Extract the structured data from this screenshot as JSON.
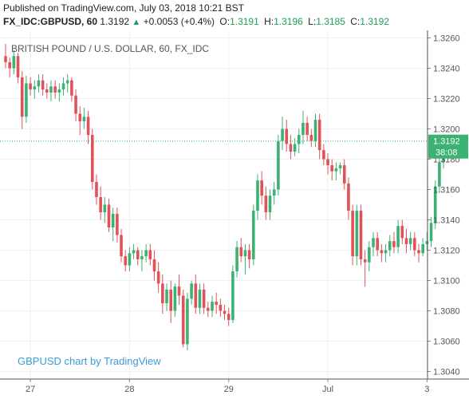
{
  "header": {
    "published": "Published on TradingView.com, July 03, 2018 10:21 BST",
    "symbol": "FX_IDC:GBPUSD, 60",
    "last": "1.3192",
    "change": "+0.0053 (+0.4%)",
    "open_label": "O:",
    "open": "1.3191",
    "high_label": "H:",
    "high": "1.3196",
    "low_label": "L:",
    "low": "1.3185",
    "close_label": "C:",
    "close": "1.3192"
  },
  "colors": {
    "up": "#3bb273",
    "down": "#e0525a",
    "price_line": "#3bb273",
    "axis_text": "#555555"
  },
  "chart_data": {
    "type": "candlestick",
    "title": "BRITISH POUND / U.S. DOLLAR, 60, FX_IDC",
    "watermark": "GBPUSD chart by TradingView",
    "ylim": [
      1.3035,
      1.3265
    ],
    "yticks": [
      "1.3260",
      "1.3240",
      "1.3220",
      "1.3200",
      "1.3180",
      "1.3160",
      "1.3140",
      "1.3120",
      "1.3100",
      "1.3080",
      "1.3060",
      "1.3040"
    ],
    "xticks": [
      {
        "label": "27",
        "index": 6
      },
      {
        "label": "28",
        "index": 30
      },
      {
        "label": "29",
        "index": 54
      },
      {
        "label": "Jul",
        "index": 78
      },
      {
        "label": "3",
        "index": 102
      }
    ],
    "last_price": "1.3192",
    "countdown": "38:08",
    "candles": [
      [
        1.3248,
        1.3256,
        1.324,
        1.3244
      ],
      [
        1.3244,
        1.3247,
        1.3234,
        1.324
      ],
      [
        1.324,
        1.3252,
        1.3236,
        1.3248
      ],
      [
        1.3248,
        1.325,
        1.323,
        1.3234
      ],
      [
        1.3234,
        1.3238,
        1.32,
        1.3208
      ],
      [
        1.3208,
        1.3235,
        1.3204,
        1.323
      ],
      [
        1.323,
        1.3234,
        1.3222,
        1.3226
      ],
      [
        1.3226,
        1.3232,
        1.322,
        1.3228
      ],
      [
        1.3228,
        1.3236,
        1.3224,
        1.3232
      ],
      [
        1.3232,
        1.3236,
        1.3222,
        1.3226
      ],
      [
        1.3226,
        1.323,
        1.322,
        1.3224
      ],
      [
        1.3224,
        1.3232,
        1.3218,
        1.3228
      ],
      [
        1.3228,
        1.3232,
        1.322,
        1.3224
      ],
      [
        1.3224,
        1.323,
        1.3218,
        1.3226
      ],
      [
        1.3226,
        1.3234,
        1.3222,
        1.323
      ],
      [
        1.323,
        1.3236,
        1.3224,
        1.3232
      ],
      [
        1.3232,
        1.3234,
        1.3218,
        1.3222
      ],
      [
        1.3222,
        1.3226,
        1.3205,
        1.321
      ],
      [
        1.321,
        1.3215,
        1.3196,
        1.3205
      ],
      [
        1.3205,
        1.3214,
        1.32,
        1.3208
      ],
      [
        1.3208,
        1.3212,
        1.319,
        1.3196
      ],
      [
        1.3196,
        1.32,
        1.316,
        1.3165
      ],
      [
        1.3165,
        1.317,
        1.315,
        1.3155
      ],
      [
        1.3155,
        1.3162,
        1.314,
        1.3145
      ],
      [
        1.3145,
        1.3155,
        1.3138,
        1.315
      ],
      [
        1.315,
        1.3154,
        1.3132,
        1.3135
      ],
      [
        1.3135,
        1.3148,
        1.3126,
        1.3144
      ],
      [
        1.3144,
        1.3148,
        1.3125,
        1.313
      ],
      [
        1.313,
        1.3134,
        1.3112,
        1.3116
      ],
      [
        1.3116,
        1.312,
        1.3106,
        1.311
      ],
      [
        1.311,
        1.3122,
        1.3106,
        1.3118
      ],
      [
        1.3118,
        1.3124,
        1.3114,
        1.312
      ],
      [
        1.312,
        1.3122,
        1.311,
        1.3114
      ],
      [
        1.3114,
        1.312,
        1.3106,
        1.3116
      ],
      [
        1.3116,
        1.3124,
        1.3112,
        1.312
      ],
      [
        1.312,
        1.3124,
        1.311,
        1.3114
      ],
      [
        1.3114,
        1.312,
        1.31,
        1.3106
      ],
      [
        1.3106,
        1.3112,
        1.3092,
        1.3098
      ],
      [
        1.3098,
        1.3104,
        1.3078,
        1.3085
      ],
      [
        1.3085,
        1.3098,
        1.308,
        1.3094
      ],
      [
        1.3094,
        1.31,
        1.3072,
        1.308
      ],
      [
        1.308,
        1.3098,
        1.3076,
        1.3096
      ],
      [
        1.3096,
        1.3104,
        1.3084,
        1.309
      ],
      [
        1.309,
        1.3094,
        1.3056,
        1.3058
      ],
      [
        1.3058,
        1.3092,
        1.3054,
        1.3088
      ],
      [
        1.3088,
        1.31,
        1.3084,
        1.3098
      ],
      [
        1.3098,
        1.3104,
        1.3078,
        1.3082
      ],
      [
        1.3082,
        1.3098,
        1.3078,
        1.3094
      ],
      [
        1.3094,
        1.3098,
        1.3078,
        1.3082
      ],
      [
        1.3082,
        1.3086,
        1.3076,
        1.308
      ],
      [
        1.308,
        1.309,
        1.3076,
        1.3086
      ],
      [
        1.3086,
        1.3092,
        1.3078,
        1.3084
      ],
      [
        1.3084,
        1.3088,
        1.3076,
        1.308
      ],
      [
        1.308,
        1.3084,
        1.3074,
        1.3078
      ],
      [
        1.3078,
        1.3082,
        1.307,
        1.3074
      ],
      [
        1.3074,
        1.311,
        1.3072,
        1.3106
      ],
      [
        1.3106,
        1.3126,
        1.3102,
        1.3122
      ],
      [
        1.3122,
        1.3128,
        1.3112,
        1.3116
      ],
      [
        1.3116,
        1.3124,
        1.3104,
        1.312
      ],
      [
        1.312,
        1.3124,
        1.3108,
        1.3114
      ],
      [
        1.3114,
        1.315,
        1.311,
        1.3146
      ],
      [
        1.3146,
        1.317,
        1.314,
        1.3166
      ],
      [
        1.3166,
        1.3172,
        1.315,
        1.3156
      ],
      [
        1.3156,
        1.3162,
        1.314,
        1.3145
      ],
      [
        1.3145,
        1.316,
        1.314,
        1.3156
      ],
      [
        1.3156,
        1.3165,
        1.315,
        1.316
      ],
      [
        1.316,
        1.3196,
        1.3156,
        1.3192
      ],
      [
        1.3192,
        1.3208,
        1.3186,
        1.32
      ],
      [
        1.32,
        1.3206,
        1.3185,
        1.319
      ],
      [
        1.319,
        1.3196,
        1.318,
        1.3185
      ],
      [
        1.3185,
        1.3194,
        1.3182,
        1.319
      ],
      [
        1.319,
        1.32,
        1.3184,
        1.3196
      ],
      [
        1.3196,
        1.3212,
        1.319,
        1.3204
      ],
      [
        1.3204,
        1.3208,
        1.3192,
        1.3196
      ],
      [
        1.3196,
        1.32,
        1.3188,
        1.3192
      ],
      [
        1.3192,
        1.321,
        1.3188,
        1.3206
      ],
      [
        1.3206,
        1.321,
        1.318,
        1.3186
      ],
      [
        1.3186,
        1.319,
        1.3176,
        1.318
      ],
      [
        1.318,
        1.3184,
        1.317,
        1.3176
      ],
      [
        1.3176,
        1.318,
        1.3166,
        1.3172
      ],
      [
        1.3172,
        1.3178,
        1.3166,
        1.3174
      ],
      [
        1.3174,
        1.3178,
        1.317,
        1.3176
      ],
      [
        1.3176,
        1.318,
        1.316,
        1.3164
      ],
      [
        1.3164,
        1.3168,
        1.314,
        1.3146
      ],
      [
        1.3146,
        1.315,
        1.311,
        1.3116
      ],
      [
        1.3116,
        1.315,
        1.311,
        1.3146
      ],
      [
        1.3146,
        1.315,
        1.311,
        1.3114
      ],
      [
        1.3114,
        1.312,
        1.3096,
        1.3112
      ],
      [
        1.3112,
        1.3126,
        1.3106,
        1.3122
      ],
      [
        1.3122,
        1.3132,
        1.3116,
        1.3128
      ],
      [
        1.3128,
        1.3132,
        1.3116,
        1.312
      ],
      [
        1.312,
        1.3124,
        1.3112,
        1.3118
      ],
      [
        1.3118,
        1.3124,
        1.3112,
        1.312
      ],
      [
        1.312,
        1.313,
        1.3116,
        1.3126
      ],
      [
        1.3126,
        1.3132,
        1.3118,
        1.3122
      ],
      [
        1.3122,
        1.314,
        1.3118,
        1.3136
      ],
      [
        1.3136,
        1.314,
        1.3124,
        1.3128
      ],
      [
        1.3128,
        1.3134,
        1.3118,
        1.3124
      ],
      [
        1.3124,
        1.3132,
        1.312,
        1.3128
      ],
      [
        1.3128,
        1.3132,
        1.3116,
        1.312
      ],
      [
        1.312,
        1.3124,
        1.3112,
        1.3118
      ],
      [
        1.3118,
        1.3128,
        1.3116,
        1.3124
      ],
      [
        1.3124,
        1.3132,
        1.312,
        1.3126
      ],
      [
        1.3126,
        1.3142,
        1.3122,
        1.3138
      ],
      [
        1.3138,
        1.3166,
        1.3134,
        1.3162
      ],
      [
        1.3162,
        1.3182,
        1.3158,
        1.3178
      ],
      [
        1.3178,
        1.3194,
        1.3174,
        1.319
      ],
      [
        1.3191,
        1.3196,
        1.3185,
        1.3192
      ]
    ]
  }
}
